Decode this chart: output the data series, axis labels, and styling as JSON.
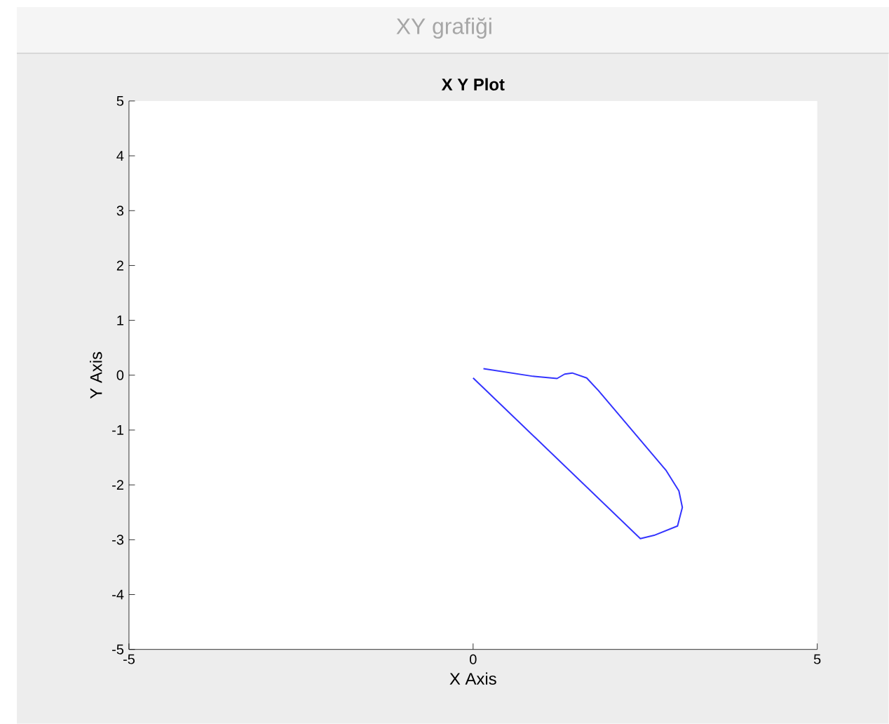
{
  "chart_data": {
    "type": "line",
    "title": "X Y Plot",
    "xlabel": "X Axis",
    "ylabel": "Y Axis",
    "annotations": [
      "XY grafiği"
    ],
    "xlim": [
      -5,
      5
    ],
    "ylim": [
      -5,
      5
    ],
    "xticks": [
      -5,
      0,
      5
    ],
    "yticks": [
      -5,
      -4,
      -3,
      -2,
      -1,
      0,
      1,
      2,
      3,
      4,
      5
    ],
    "grid": false,
    "marker": "none",
    "line_style": "solid",
    "series": [
      {
        "color": "#3333ff",
        "x": [
          0,
          2.43,
          2.63,
          2.97,
          3.04,
          2.99,
          2.8,
          1.82,
          1.65,
          1.44,
          1.33,
          1.22,
          0.87,
          0.15
        ],
        "values": [
          -0.05,
          -2.98,
          -2.92,
          -2.75,
          -2.41,
          -2.11,
          -1.73,
          -0.28,
          -0.05,
          0.04,
          0.02,
          -0.06,
          -0.02,
          0.12
        ]
      }
    ]
  }
}
